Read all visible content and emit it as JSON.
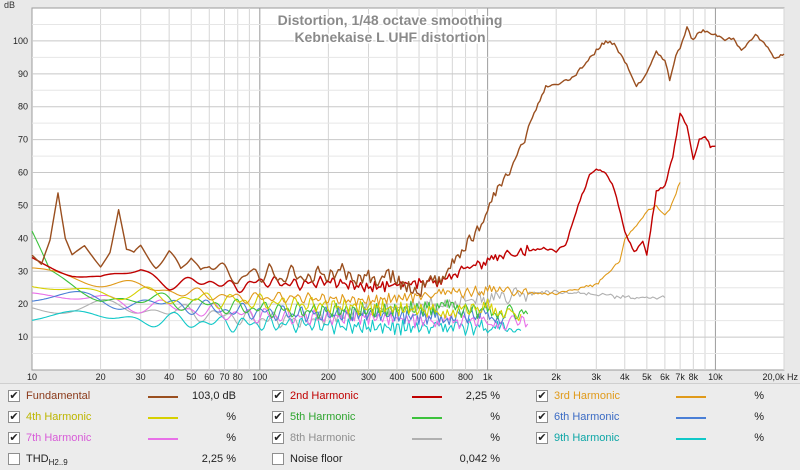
{
  "chart_data": {
    "type": "line",
    "title": "Distortion, 1/48 octave smoothing",
    "subtitle": "Kebnekaise L UHF distortion",
    "ylabel": "dB",
    "xlabel": "",
    "xscale": "log",
    "xlim": [
      10,
      20000
    ],
    "ylim": [
      0,
      110
    ],
    "grid": true,
    "x_ticks": [
      {
        "v": 10,
        "l": "10"
      },
      {
        "v": 20,
        "l": "20"
      },
      {
        "v": 30,
        "l": "30"
      },
      {
        "v": 40,
        "l": "40"
      },
      {
        "v": 50,
        "l": "50"
      },
      {
        "v": 60,
        "l": "60"
      },
      {
        "v": 70,
        "l": "70"
      },
      {
        "v": 80,
        "l": "80"
      },
      {
        "v": 100,
        "l": "100"
      },
      {
        "v": 200,
        "l": "200"
      },
      {
        "v": 300,
        "l": "300"
      },
      {
        "v": 400,
        "l": "400"
      },
      {
        "v": 500,
        "l": "500"
      },
      {
        "v": 600,
        "l": "600"
      },
      {
        "v": 800,
        "l": "800"
      },
      {
        "v": 1000,
        "l": "1k"
      },
      {
        "v": 2000,
        "l": "2k"
      },
      {
        "v": 3000,
        "l": "3k"
      },
      {
        "v": 4000,
        "l": "4k"
      },
      {
        "v": 5000,
        "l": "5k"
      },
      {
        "v": 6000,
        "l": "6k"
      },
      {
        "v": 7000,
        "l": "7k"
      },
      {
        "v": 8000,
        "l": "8k"
      },
      {
        "v": 10000,
        "l": "10k"
      },
      {
        "v": 20000,
        "l": "20,0k Hz"
      }
    ],
    "y_ticks": [
      10,
      20,
      30,
      40,
      50,
      60,
      70,
      80,
      90,
      100
    ],
    "series": [
      {
        "name": "Fundamental",
        "color": "#9a4f1f",
        "points": [
          [
            10,
            36
          ],
          [
            11,
            33
          ],
          [
            12,
            40
          ],
          [
            13,
            54
          ],
          [
            14,
            40
          ],
          [
            15,
            35
          ],
          [
            17,
            38
          ],
          [
            20,
            32
          ],
          [
            22,
            36
          ],
          [
            24,
            48
          ],
          [
            26,
            35
          ],
          [
            28,
            34
          ],
          [
            30,
            37
          ],
          [
            35,
            33
          ],
          [
            40,
            36
          ],
          [
            45,
            30
          ],
          [
            50,
            34
          ],
          [
            55,
            30
          ],
          [
            60,
            33
          ],
          [
            70,
            30
          ],
          [
            80,
            27
          ],
          [
            90,
            30
          ],
          [
            100,
            28
          ],
          [
            110,
            31
          ],
          [
            120,
            27
          ],
          [
            140,
            30
          ],
          [
            160,
            27
          ],
          [
            180,
            30
          ],
          [
            200,
            28
          ],
          [
            230,
            31
          ],
          [
            260,
            27
          ],
          [
            300,
            29
          ],
          [
            330,
            26
          ],
          [
            360,
            30
          ],
          [
            400,
            27
          ],
          [
            450,
            25
          ],
          [
            500,
            23
          ],
          [
            550,
            28
          ],
          [
            600,
            26
          ],
          [
            700,
            33
          ],
          [
            800,
            38
          ],
          [
            900,
            42
          ],
          [
            1000,
            49
          ],
          [
            1200,
            58
          ],
          [
            1400,
            68
          ],
          [
            1600,
            78
          ],
          [
            1800,
            86
          ],
          [
            2000,
            87
          ],
          [
            2300,
            88
          ],
          [
            2600,
            92
          ],
          [
            3000,
            97
          ],
          [
            3300,
            100
          ],
          [
            3600,
            99
          ],
          [
            4000,
            94
          ],
          [
            4500,
            86
          ],
          [
            5000,
            90
          ],
          [
            5500,
            97
          ],
          [
            6000,
            94
          ],
          [
            6300,
            88
          ],
          [
            6700,
            96
          ],
          [
            7000,
            98
          ],
          [
            7500,
            104
          ],
          [
            8000,
            100
          ],
          [
            8500,
            103
          ],
          [
            9000,
            103
          ],
          [
            10000,
            102
          ],
          [
            11000,
            100
          ],
          [
            12000,
            101
          ],
          [
            13000,
            97
          ],
          [
            15000,
            102
          ],
          [
            17000,
            98
          ],
          [
            18000,
            95
          ],
          [
            19000,
            95
          ],
          [
            20000,
            96
          ]
        ]
      },
      {
        "name": "2nd Harmonic",
        "color": "#c00000",
        "points": [
          [
            10,
            34
          ],
          [
            15,
            30
          ],
          [
            20,
            28
          ],
          [
            30,
            30
          ],
          [
            40,
            26
          ],
          [
            60,
            27
          ],
          [
            80,
            25
          ],
          [
            100,
            27
          ],
          [
            150,
            26
          ],
          [
            200,
            27
          ],
          [
            300,
            25
          ],
          [
            400,
            26
          ],
          [
            600,
            27
          ],
          [
            800,
            31
          ],
          [
            1000,
            33
          ],
          [
            1400,
            36
          ],
          [
            1800,
            37
          ],
          [
            2000,
            36
          ],
          [
            2200,
            38
          ],
          [
            2500,
            50
          ],
          [
            2800,
            59
          ],
          [
            3000,
            61
          ],
          [
            3300,
            60
          ],
          [
            3600,
            55
          ],
          [
            4000,
            42
          ],
          [
            4400,
            36
          ],
          [
            4800,
            39
          ],
          [
            5000,
            35
          ],
          [
            5500,
            54
          ],
          [
            6000,
            56
          ],
          [
            6500,
            65
          ],
          [
            7000,
            78
          ],
          [
            7500,
            74
          ],
          [
            8000,
            64
          ],
          [
            8500,
            70
          ],
          [
            9000,
            71
          ],
          [
            9500,
            68
          ],
          [
            10000,
            68
          ]
        ]
      },
      {
        "name": "3rd Harmonic",
        "color": "#e09a1a",
        "points": [
          [
            10,
            30
          ],
          [
            20,
            27
          ],
          [
            40,
            24
          ],
          [
            80,
            22
          ],
          [
            150,
            22
          ],
          [
            300,
            21
          ],
          [
            600,
            23
          ],
          [
            1000,
            24
          ],
          [
            2000,
            23
          ],
          [
            3000,
            26
          ],
          [
            3800,
            33
          ],
          [
            4000,
            40
          ],
          [
            4500,
            44
          ],
          [
            5000,
            48
          ],
          [
            5500,
            50
          ],
          [
            6000,
            47
          ],
          [
            6300,
            49
          ],
          [
            7000,
            57
          ]
        ]
      },
      {
        "name": "4th Harmonic",
        "color": "#d6d000",
        "points": [
          [
            10,
            25
          ],
          [
            20,
            24
          ],
          [
            40,
            22
          ],
          [
            80,
            21
          ],
          [
            150,
            20
          ],
          [
            300,
            19
          ],
          [
            600,
            18
          ],
          [
            1000,
            19
          ],
          [
            1400,
            17
          ]
        ]
      },
      {
        "name": "5th Harmonic",
        "color": "#3cc23c",
        "points": [
          [
            10,
            40
          ],
          [
            12,
            28
          ],
          [
            20,
            22
          ],
          [
            40,
            21
          ],
          [
            80,
            19
          ],
          [
            150,
            18
          ],
          [
            300,
            18
          ],
          [
            600,
            19
          ],
          [
            1000,
            18
          ],
          [
            1500,
            17
          ]
        ]
      },
      {
        "name": "6th Harmonic",
        "color": "#4a7fd6",
        "points": [
          [
            10,
            22
          ],
          [
            20,
            21
          ],
          [
            40,
            20
          ],
          [
            80,
            18
          ],
          [
            150,
            17
          ],
          [
            300,
            17
          ],
          [
            600,
            16
          ],
          [
            1000,
            17
          ],
          [
            1200,
            16
          ]
        ]
      },
      {
        "name": "7th Harmonic",
        "color": "#e870e8",
        "points": [
          [
            10,
            23
          ],
          [
            20,
            21
          ],
          [
            40,
            19
          ],
          [
            80,
            17
          ],
          [
            150,
            16
          ],
          [
            300,
            16
          ],
          [
            600,
            15
          ],
          [
            1000,
            15
          ],
          [
            1500,
            14
          ]
        ]
      },
      {
        "name": "8th Harmonic",
        "color": "#b0b0b0",
        "points": [
          [
            10,
            20
          ],
          [
            20,
            19
          ],
          [
            40,
            18
          ],
          [
            80,
            16
          ],
          [
            150,
            15
          ],
          [
            300,
            18
          ],
          [
            600,
            20
          ],
          [
            1000,
            22
          ],
          [
            2000,
            24
          ],
          [
            4000,
            22
          ],
          [
            6000,
            22
          ]
        ]
      },
      {
        "name": "9th Harmonic",
        "color": "#10c8c8",
        "points": [
          [
            10,
            17
          ],
          [
            20,
            16
          ],
          [
            40,
            15
          ],
          [
            80,
            14
          ],
          [
            150,
            14
          ],
          [
            300,
            13
          ],
          [
            600,
            13
          ],
          [
            1000,
            13
          ],
          [
            1400,
            12
          ]
        ]
      }
    ]
  },
  "legend": {
    "rows": [
      [
        {
          "name": "Fundamental",
          "color": "#8b3a1a",
          "swatch": "#9a4f1f",
          "value": "103,0 dB",
          "checked": "✔"
        },
        {
          "name": "2nd Harmonic",
          "color": "#c00000",
          "swatch": "#c00000",
          "value": "2,25 %",
          "checked": "✔"
        },
        {
          "name": "3rd Harmonic",
          "color": "#e09a1a",
          "swatch": "#e09a1a",
          "value": "%",
          "checked": "✔"
        }
      ],
      [
        {
          "name": "4th Harmonic",
          "color": "#bdb600",
          "swatch": "#d6d000",
          "value": "%",
          "checked": "✔"
        },
        {
          "name": "5th Harmonic",
          "color": "#2fa52f",
          "swatch": "#3cc23c",
          "value": "%",
          "checked": "✔"
        },
        {
          "name": "6th Harmonic",
          "color": "#3b6bc4",
          "swatch": "#4a7fd6",
          "value": "%",
          "checked": "✔"
        }
      ],
      [
        {
          "name": "7th Harmonic",
          "color": "#d85cd8",
          "swatch": "#e870e8",
          "value": "%",
          "checked": "✔"
        },
        {
          "name": "8th Harmonic",
          "color": "#8f8f8f",
          "swatch": "#b0b0b0",
          "value": "%",
          "checked": "✔"
        },
        {
          "name": "9th Harmonic",
          "color": "#0da6a6",
          "swatch": "#10c8c8",
          "value": "%",
          "checked": "✔"
        }
      ]
    ],
    "thd": {
      "label": "THD",
      "sub": "H2..9",
      "value": "2,25 %",
      "checked": ""
    },
    "noise": {
      "label": "Noise floor",
      "value": "0,042 %",
      "checked": ""
    }
  }
}
